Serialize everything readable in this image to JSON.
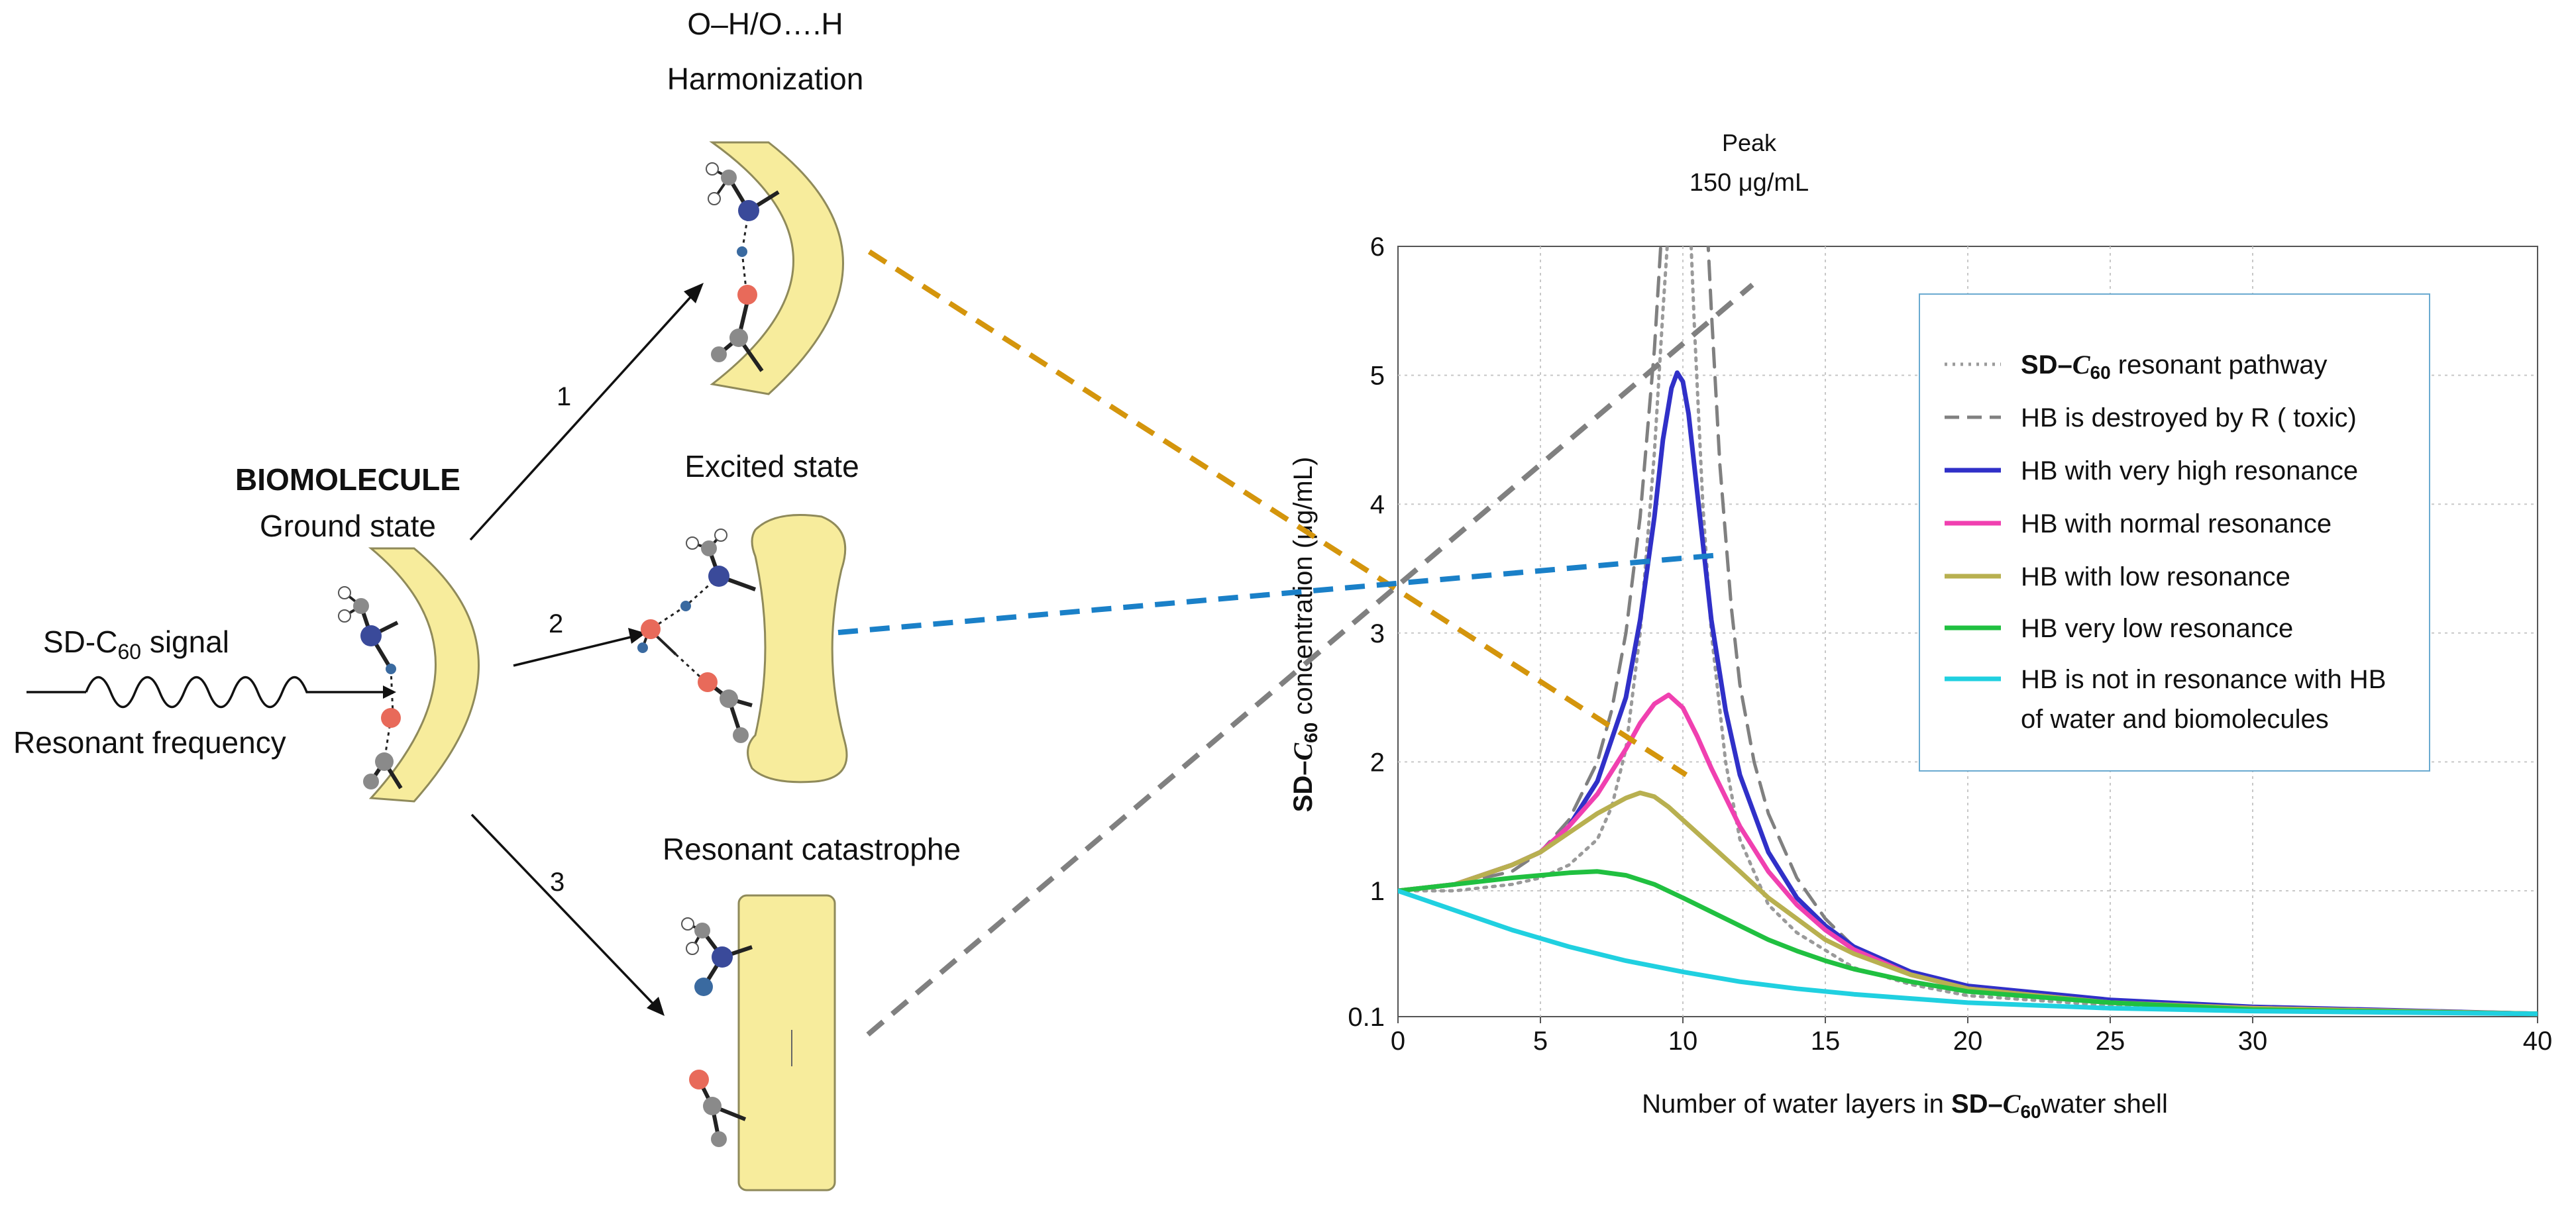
{
  "diagram": {
    "biomolecule_title": "BIOMOLECULE",
    "ground_state": "Ground state",
    "signal_label_prefix": "SD-C",
    "signal_label_sub": "60",
    "signal_label_suffix": " signal",
    "resonant_frequency": "Resonant frequency",
    "path_1": "1",
    "path_2": "2",
    "path_3": "3",
    "harmonization_line1": "O–H/O….H",
    "harmonization_line2": "Harmonization",
    "excited_state": "Excited  state",
    "resonant_catastrophe": "Resonant catastrophe",
    "colors": {
      "shell": "#f7ec9c",
      "shell_stroke": "#8f8a5a",
      "atom_n": "#3a4a9a",
      "atom_o": "#e86a5a",
      "atom_c": "#8a8a8a",
      "atom_h": "#ffffff",
      "link_orange": "#d4950c",
      "link_blue": "#1a80c8",
      "link_gray": "#808080"
    }
  },
  "chart_data": {
    "type": "line",
    "peak_line1": "Peak",
    "peak_line2": "150  μg/mL",
    "ylabel_prefix": "SD–",
    "ylabel_var": "C",
    "ylabel_sub": "60",
    "ylabel_suffix": " concentration (μg/mL)",
    "xlabel_prefix": "Number of water layers in  ",
    "xlabel_bold": "SD–",
    "xlabel_var": "C",
    "xlabel_sub": "60",
    "xlabel_suffix": "water shell",
    "xlim": [
      0,
      40
    ],
    "xticks": [
      "0",
      "5",
      "10",
      "15",
      "20",
      "25",
      "30",
      "40"
    ],
    "yticks": [
      "0.1",
      "1",
      "2",
      "3",
      "4",
      "5",
      "6"
    ],
    "grid": true,
    "legend_position": "top-right",
    "series": [
      {
        "name": "SD–C60 resonant pathway",
        "legend_prefix": "SD–",
        "legend_var": "C",
        "legend_sub": "60",
        "legend_suffix": " resonant pathway",
        "style": "dotted",
        "color": "#9a9a9a",
        "x": [
          0,
          2,
          4,
          5,
          6,
          7,
          7.5,
          8,
          8.5,
          9,
          9.3,
          9.6,
          9.8,
          10,
          10.2,
          10.4,
          10.7,
          11,
          11.5,
          12,
          13,
          14,
          16,
          18,
          20,
          25,
          30,
          40
        ],
        "y": [
          1,
          1.0,
          1.05,
          1.1,
          1.2,
          1.4,
          1.65,
          2.1,
          3.0,
          4.4,
          5.5,
          6.5,
          7.2,
          7.2,
          6.5,
          5.4,
          4.0,
          3.0,
          2.0,
          1.4,
          0.9,
          0.7,
          0.45,
          0.33,
          0.25,
          0.18,
          0.15,
          0.12
        ]
      },
      {
        "name": "HB is destroyed by R ( toxic)",
        "legend": "HB is destroyed by R ( toxic)",
        "style": "dashed",
        "color": "#808080",
        "x": [
          0,
          2,
          4,
          5,
          6,
          7,
          7.5,
          8,
          8.5,
          9,
          9.5,
          10,
          10.5,
          10.8,
          11,
          11.3,
          11.7,
          12,
          12.5,
          13,
          14,
          15,
          16,
          18,
          20,
          25,
          30,
          40
        ],
        "y": [
          1,
          1.05,
          1.15,
          1.3,
          1.55,
          2.0,
          2.4,
          3.0,
          3.9,
          5.2,
          7.0,
          8.0,
          7.5,
          6.4,
          5.5,
          4.3,
          3.2,
          2.6,
          2.0,
          1.6,
          1.1,
          0.8,
          0.6,
          0.4,
          0.3,
          0.2,
          0.15,
          0.12
        ]
      },
      {
        "name": "HB with very high resonance",
        "legend": "HB with very high resonance",
        "style": "solid",
        "color": "#3030c8",
        "x": [
          0,
          2,
          4,
          5,
          6,
          7,
          8,
          8.5,
          9,
          9.3,
          9.6,
          9.8,
          10,
          10.2,
          10.5,
          11,
          11.5,
          12,
          13,
          14,
          15,
          16,
          18,
          20,
          25,
          30,
          40
        ],
        "y": [
          1,
          1.05,
          1.2,
          1.3,
          1.5,
          1.85,
          2.5,
          3.1,
          3.9,
          4.5,
          4.9,
          5.02,
          4.95,
          4.7,
          4.1,
          3.1,
          2.4,
          1.9,
          1.3,
          0.95,
          0.75,
          0.6,
          0.42,
          0.32,
          0.22,
          0.17,
          0.12
        ]
      },
      {
        "name": "HB  with normal resonance",
        "legend": "HB  with normal resonance",
        "style": "solid",
        "color": "#f040b0",
        "x": [
          0,
          2,
          4,
          5,
          6,
          7,
          8,
          8.5,
          9,
          9.5,
          10,
          10.5,
          11,
          12,
          13,
          14,
          15,
          16,
          18,
          20,
          25,
          30,
          40
        ],
        "y": [
          1,
          1.05,
          1.2,
          1.3,
          1.5,
          1.75,
          2.1,
          2.3,
          2.45,
          2.52,
          2.42,
          2.2,
          1.95,
          1.5,
          1.15,
          0.9,
          0.72,
          0.58,
          0.4,
          0.3,
          0.2,
          0.16,
          0.12
        ]
      },
      {
        "name": "HB  with low resonance",
        "legend": "HB  with low resonance",
        "style": "solid",
        "color": "#b8b050",
        "x": [
          0,
          2,
          4,
          5,
          6,
          7,
          8,
          8.5,
          9,
          9.5,
          10,
          11,
          12,
          13,
          14,
          15,
          16,
          18,
          20,
          25,
          30,
          40
        ],
        "y": [
          1,
          1.05,
          1.2,
          1.3,
          1.45,
          1.6,
          1.72,
          1.76,
          1.73,
          1.65,
          1.55,
          1.35,
          1.15,
          0.95,
          0.8,
          0.65,
          0.55,
          0.4,
          0.3,
          0.2,
          0.16,
          0.12
        ]
      },
      {
        "name": "HB  very low resonance",
        "legend": "HB  very low resonance",
        "style": "solid",
        "color": "#20c040",
        "x": [
          0,
          2,
          4,
          5,
          6,
          7,
          8,
          9,
          10,
          11,
          12,
          13,
          14,
          15,
          16,
          18,
          20,
          25,
          30,
          40
        ],
        "y": [
          1,
          1.05,
          1.1,
          1.12,
          1.14,
          1.15,
          1.12,
          1.05,
          0.95,
          0.85,
          0.75,
          0.65,
          0.57,
          0.5,
          0.44,
          0.35,
          0.28,
          0.2,
          0.15,
          0.12
        ]
      },
      {
        "name": "HB is not in resonance with HB of water and biomolecules",
        "legend": "HB is not in resonance with HB",
        "legend2": "of water and biomolecules",
        "style": "solid",
        "color": "#20d0e0",
        "x": [
          0,
          2,
          4,
          6,
          8,
          10,
          12,
          14,
          16,
          18,
          20,
          25,
          30,
          40
        ],
        "y": [
          1,
          0.86,
          0.72,
          0.6,
          0.5,
          0.42,
          0.35,
          0.3,
          0.26,
          0.23,
          0.2,
          0.16,
          0.14,
          0.12
        ]
      }
    ]
  }
}
